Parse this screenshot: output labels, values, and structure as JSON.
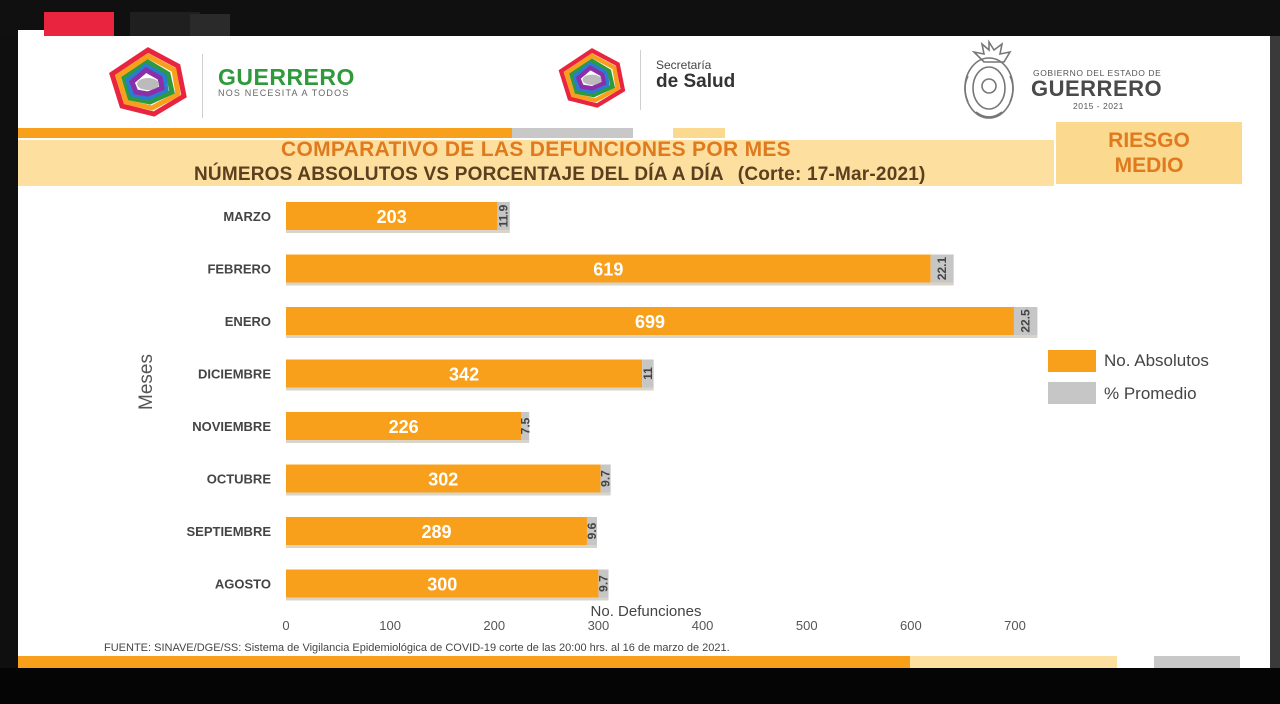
{
  "header": {
    "guerrero_title": "GUERRERO",
    "guerrero_subtitle": "NOS NECESITA A TODOS",
    "secretaria_small": "Secretaría",
    "secretaria_big": "de Salud",
    "gobierno_small": "GOBIERNO DEL ESTADO DE",
    "gobierno_big": "GUERRERO",
    "gobierno_years": "2015 - 2021"
  },
  "title_line1": "COMPARATIVO DE LAS DEFUNCIONES POR MES",
  "title_line2": "NÚMEROS ABSOLUTOS VS PORCENTAJE DEL DÍA A DÍA",
  "title_corte": "(Corte: 17-Mar-2021)",
  "risk": {
    "line1": "RIESGO",
    "line2": "MEDIO"
  },
  "colors": {
    "orange": "#f8a01b",
    "gray": "#c6c6c6",
    "title_orange": "#e07a1f",
    "guerrero_green": "#2e9a3c"
  },
  "chart_data": {
    "type": "bar",
    "orientation": "horizontal",
    "stacked": true,
    "categories": [
      "MARZO",
      "FEBRERO",
      "ENERO",
      "DICIEMBRE",
      "NOVIEMBRE",
      "OCTUBRE",
      "SEPTIEMBRE",
      "AGOSTO"
    ],
    "series": [
      {
        "name": "No. Absolutos",
        "color": "#f8a01b",
        "values": [
          203,
          619,
          699,
          342,
          226,
          302,
          289,
          300
        ]
      },
      {
        "name": "% Promedio",
        "color": "#c6c6c6",
        "values": [
          11.9,
          22.1,
          22.5,
          11,
          7.5,
          9.7,
          9.6,
          9.7
        ]
      }
    ],
    "xlabel": "No. Defunciones",
    "ylabel": "Meses",
    "xlim": [
      0,
      700
    ],
    "xticks": [
      0,
      100,
      200,
      300,
      400,
      500,
      600,
      700
    ],
    "legend_position": "right",
    "grid": false
  },
  "source": "FUENTE: SINAVE/DGE/SS: Sistema de Vigilancia Epidemiológica de COVID-19 corte de las 20:00 hrs. al 16 de  marzo de 2021."
}
